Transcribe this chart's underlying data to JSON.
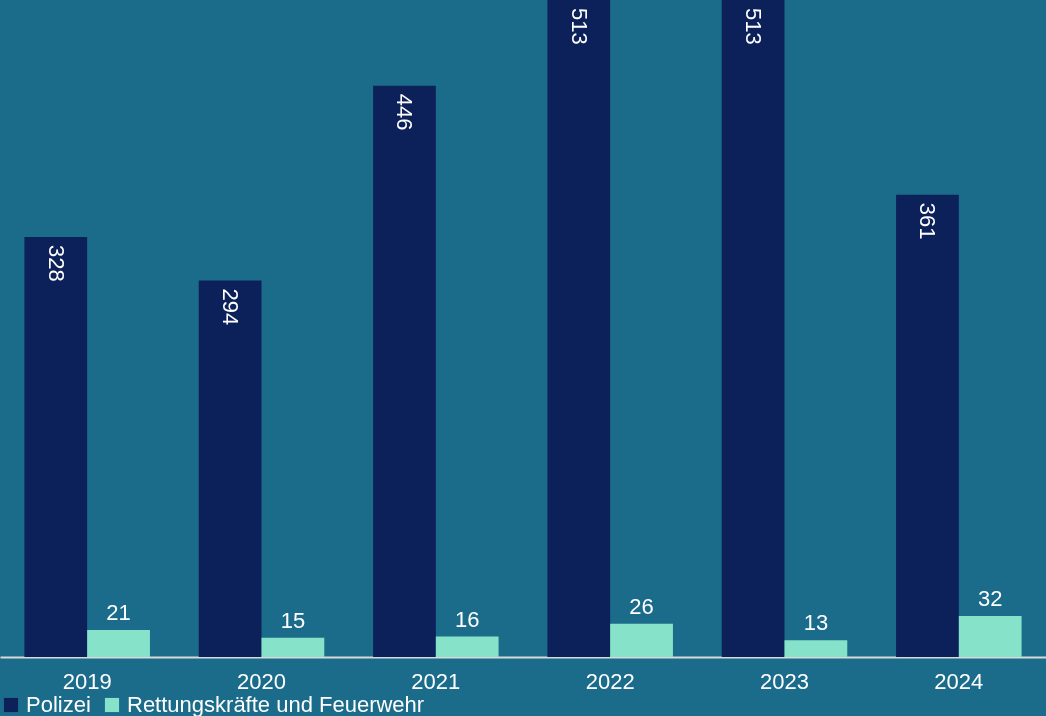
{
  "chart_data": {
    "type": "bar",
    "categories": [
      "2019",
      "2020",
      "2021",
      "2022",
      "2023",
      "2024"
    ],
    "series": [
      {
        "name": "Polizei",
        "color": "#0c2159",
        "values": [
          328,
          294,
          446,
          513,
          513,
          361
        ]
      },
      {
        "name": "Rettungskräfte und Feuerwehr",
        "color": "#86e3c9",
        "values": [
          21,
          15,
          16,
          26,
          13,
          32
        ]
      }
    ],
    "data_labels": true,
    "legend": "bottom",
    "tick_labels": "x"
  }
}
